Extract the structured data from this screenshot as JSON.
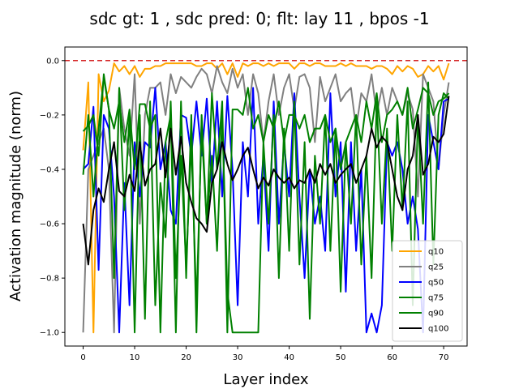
{
  "chart_data": {
    "type": "line",
    "title": "sdc gt: 1 , sdc pred: 0; flt: lay 11 , bpos -1",
    "xlabel": "Layer index",
    "ylabel": "Activation magnitude (norm)",
    "xlim": [
      -3.55,
      74.55
    ],
    "ylim": [
      -1.05,
      0.05
    ],
    "xticks": [
      0,
      10,
      20,
      30,
      40,
      50,
      60,
      70
    ],
    "yticks": [
      -1.0,
      -0.8,
      -0.6,
      -0.4,
      -0.2,
      0.0
    ],
    "ytick_labels": [
      "−1.0",
      "−0.8",
      "−0.6",
      "−0.4",
      "−0.2",
      "0.0"
    ],
    "reference_line": {
      "y": 0.0,
      "color": "#d62728",
      "style": "dashed"
    },
    "legend_position": "lower-right",
    "series": [
      {
        "name": "q10",
        "color": "#ffa500",
        "values": [
          -0.33,
          -0.08,
          -1.0,
          -0.05,
          -0.15,
          -0.11,
          -0.01,
          -0.04,
          -0.02,
          -0.05,
          -0.02,
          -0.06,
          -0.03,
          -0.03,
          -0.02,
          -0.02,
          -0.01,
          -0.01,
          -0.01,
          -0.01,
          -0.01,
          -0.01,
          -0.02,
          -0.02,
          -0.01,
          -0.01,
          -0.03,
          -0.01,
          -0.05,
          -0.01,
          -0.06,
          -0.01,
          -0.02,
          -0.01,
          -0.01,
          -0.02,
          -0.01,
          -0.02,
          -0.01,
          -0.01,
          -0.01,
          -0.03,
          -0.01,
          -0.01,
          -0.02,
          -0.01,
          -0.01,
          -0.02,
          -0.02,
          -0.02,
          -0.01,
          -0.02,
          -0.01,
          -0.02,
          -0.02,
          -0.02,
          -0.03,
          -0.02,
          -0.02,
          -0.03,
          -0.05,
          -0.02,
          -0.04,
          -0.02,
          -0.03,
          -0.06,
          -0.05,
          -0.02,
          -0.04,
          -0.02,
          -0.07,
          -0.01
        ]
      },
      {
        "name": "q25",
        "color": "#808080",
        "values": [
          -1.0,
          -0.4,
          -0.35,
          -0.3,
          -0.25,
          -0.4,
          -1.0,
          -0.1,
          -0.25,
          -0.35,
          -0.05,
          -0.6,
          -0.2,
          -0.1,
          -0.1,
          -0.08,
          -0.2,
          -0.05,
          -0.12,
          -0.06,
          -0.08,
          -0.1,
          -0.06,
          -0.03,
          -0.05,
          -0.12,
          -0.02,
          -0.08,
          -0.12,
          -0.03,
          -0.1,
          -0.05,
          -0.2,
          -0.05,
          -0.12,
          -0.3,
          -0.15,
          -0.05,
          -0.2,
          -0.1,
          -0.05,
          -0.18,
          -0.06,
          -0.05,
          -0.1,
          -0.3,
          -0.06,
          -0.15,
          -0.1,
          -0.05,
          -0.15,
          -0.12,
          -0.1,
          -0.25,
          -0.12,
          -0.15,
          -0.05,
          -0.2,
          -0.1,
          -0.2,
          -0.1,
          -0.15,
          -0.2,
          -0.12,
          -0.18,
          -0.5,
          -0.05,
          -0.1,
          -0.15,
          -0.4,
          -0.2,
          -0.08
        ]
      },
      {
        "name": "q50",
        "color": "#0000ff",
        "values": [
          -0.4,
          -0.38,
          -0.17,
          -0.77,
          -0.2,
          -0.25,
          -0.5,
          -1.0,
          -0.45,
          -0.9,
          -0.3,
          -0.5,
          -0.3,
          -0.32,
          -0.1,
          -0.4,
          -0.3,
          -0.55,
          -0.6,
          -0.2,
          -0.21,
          -0.35,
          -0.15,
          -0.35,
          -0.14,
          -0.45,
          -0.15,
          -0.5,
          -0.13,
          -0.4,
          -0.9,
          -0.3,
          -0.5,
          -0.1,
          -0.6,
          -0.35,
          -0.7,
          -0.15,
          -0.6,
          -0.3,
          -0.5,
          -0.12,
          -0.5,
          -0.8,
          -0.4,
          -0.6,
          -0.5,
          -0.7,
          -0.12,
          -0.5,
          -0.3,
          -0.85,
          -0.3,
          -0.7,
          -0.4,
          -1.0,
          -0.93,
          -1.0,
          -0.9,
          -0.3,
          -0.35,
          -0.3,
          -0.4,
          -0.6,
          -0.5,
          -0.62,
          -1.0,
          -0.2,
          -0.3,
          -0.4,
          -0.15,
          -0.14
        ]
      },
      {
        "name": "q75",
        "color": "#008000",
        "values": [
          -0.42,
          -0.2,
          -0.5,
          -0.25,
          -0.06,
          -0.18,
          -0.8,
          -0.1,
          -0.55,
          -0.2,
          -1.0,
          -0.2,
          -0.95,
          -0.15,
          -0.9,
          -0.45,
          -0.65,
          -0.15,
          -0.8,
          -0.35,
          -0.75,
          -0.3,
          -0.9,
          -0.25,
          -0.6,
          -0.35,
          -0.7,
          -0.2,
          -0.85,
          -1.0,
          -1.0,
          -1.0,
          -1.0,
          -1.0,
          -1.0,
          -0.3,
          -0.6,
          -0.2,
          -0.8,
          -0.25,
          -0.7,
          -0.15,
          -0.75,
          -0.3,
          -0.95,
          -0.35,
          -0.6,
          -0.2,
          -0.7,
          -0.25,
          -0.85,
          -0.3,
          -0.6,
          -0.2,
          -0.75,
          -0.35,
          -0.8,
          -0.15,
          -0.6,
          -0.25,
          -0.7,
          -0.2,
          -0.55,
          -0.15,
          -0.9,
          -0.2,
          -0.6,
          -0.08,
          -0.75,
          -0.2,
          -0.12,
          -0.14
        ]
      },
      {
        "name": "q90",
        "color": "#008000",
        "values": [
          -0.26,
          -0.24,
          -0.2,
          -0.35,
          -0.05,
          -0.18,
          -0.25,
          -0.15,
          -0.3,
          -0.18,
          -0.4,
          -0.16,
          -0.16,
          -0.25,
          -0.2,
          -1.0,
          -0.3,
          -0.2,
          -1.0,
          -0.15,
          -0.8,
          -0.2,
          -1.0,
          -0.2,
          -0.6,
          -0.12,
          -0.4,
          -0.15,
          -1.0,
          -0.18,
          -0.18,
          -0.2,
          -0.1,
          -0.25,
          -0.2,
          -0.3,
          -0.2,
          -0.25,
          -0.15,
          -0.3,
          -0.2,
          -0.2,
          -0.25,
          -0.2,
          -0.3,
          -0.25,
          -0.25,
          -0.2,
          -0.3,
          -0.25,
          -0.4,
          -0.3,
          -0.25,
          -0.2,
          -0.3,
          -0.15,
          -0.25,
          -0.12,
          -0.3,
          -0.2,
          -0.18,
          -0.15,
          -0.2,
          -0.1,
          -0.25,
          -0.18,
          -0.1,
          -0.12,
          -0.2,
          -0.15,
          -0.14,
          -0.12
        ]
      },
      {
        "name": "q100",
        "color": "#000000",
        "values": [
          -0.6,
          -0.75,
          -0.55,
          -0.47,
          -0.52,
          -0.4,
          -0.3,
          -0.48,
          -0.5,
          -0.42,
          -0.48,
          -0.3,
          -0.46,
          -0.4,
          -0.38,
          -0.25,
          -0.43,
          -0.25,
          -0.42,
          -0.28,
          -0.45,
          -0.52,
          -0.58,
          -0.6,
          -0.63,
          -0.45,
          -0.4,
          -0.3,
          -0.38,
          -0.44,
          -0.4,
          -0.35,
          -0.32,
          -0.4,
          -0.47,
          -0.43,
          -0.46,
          -0.4,
          -0.43,
          -0.45,
          -0.43,
          -0.47,
          -0.44,
          -0.45,
          -0.4,
          -0.45,
          -0.38,
          -0.42,
          -0.38,
          -0.45,
          -0.42,
          -0.4,
          -0.38,
          -0.45,
          -0.4,
          -0.35,
          -0.25,
          -0.32,
          -0.28,
          -0.3,
          -0.4,
          -0.5,
          -0.55,
          -0.4,
          -0.35,
          -0.2,
          -0.42,
          -0.38,
          -0.28,
          -0.3,
          -0.27,
          -0.13
        ]
      }
    ]
  }
}
